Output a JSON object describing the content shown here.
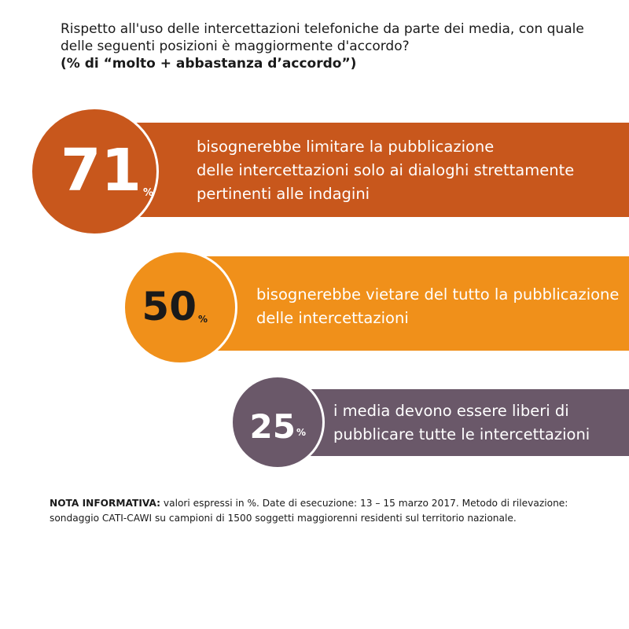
{
  "title": {
    "question": "Rispetto all'uso delle intercettazioni telefoniche da parte dei media, con quale delle seguenti posizioni è maggiormente d'accordo?",
    "subtitle": "(% di “molto + abbastanza d’accordo”)"
  },
  "items": [
    {
      "value": "71",
      "unit": "%",
      "lines": [
        "bisognerebbe limitare la pubblicazione",
        "delle intercettazioni solo ai dialoghi strettamente",
        "pertinenti alle indagini"
      ],
      "color": "#c8571c"
    },
    {
      "value": "50",
      "unit": "%",
      "lines": [
        "bisognerebbe vietare del tutto la pubblicazione",
        "delle intercettazioni"
      ],
      "color": "#f0901a"
    },
    {
      "value": "25",
      "unit": "%",
      "lines": [
        "i media devono essere liberi di",
        "pubblicare tutte le intercettazioni"
      ],
      "color": "#6a5869"
    }
  ],
  "note": {
    "label": "NOTA INFORMATIVA:",
    "text": "valori espressi in %. Date di esecuzione: 13 – 15 marzo 2017. Metodo di rilevazione: sondaggio CATI-CAWI su campioni di 1500 soggetti maggiorenni residenti sul territorio nazionale."
  },
  "chart_data": {
    "type": "bar",
    "categories": [
      "bisognerebbe limitare la pubblicazione delle intercettazioni solo ai dialoghi strettamente pertinenti alle indagini",
      "bisognerebbe vietare del tutto la pubblicazione delle intercettazioni",
      "i media devono essere liberi di pubblicare tutte le intercettazioni"
    ],
    "values": [
      71,
      50,
      25
    ],
    "title": "Rispetto all'uso delle intercettazioni telefoniche da parte dei media, con quale delle seguenti posizioni è maggiormente d'accordo?",
    "subtitle": "(% di “molto + abbastanza d’accordo”)",
    "unit": "%"
  }
}
